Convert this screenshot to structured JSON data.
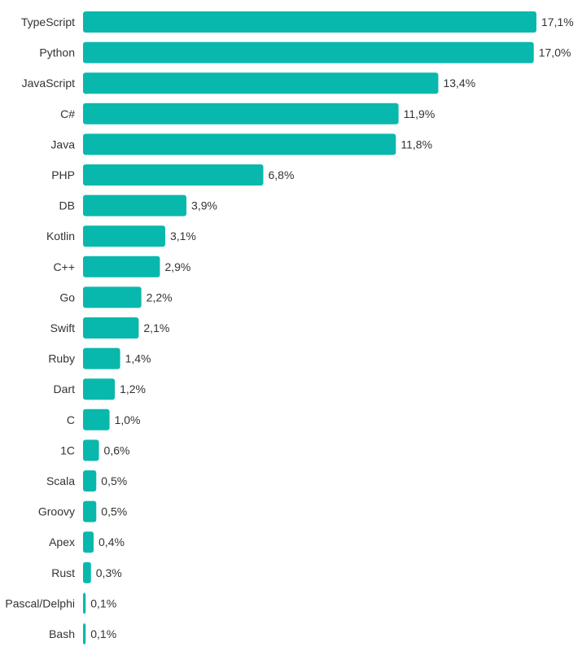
{
  "chart_data": {
    "type": "bar",
    "orientation": "horizontal",
    "title": "",
    "xlabel": "",
    "ylabel": "",
    "categories": [
      "TypeScript",
      "Python",
      "JavaScript",
      "C#",
      "Java",
      "PHP",
      "DB",
      "Kotlin",
      "C++",
      "Go",
      "Swift",
      "Ruby",
      "Dart",
      "C",
      "1C",
      "Scala",
      "Groovy",
      "Apex",
      "Rust",
      "Pascal/Delphi",
      "Bash"
    ],
    "values": [
      17.1,
      17.0,
      13.4,
      11.9,
      11.8,
      6.8,
      3.9,
      3.1,
      2.9,
      2.2,
      2.1,
      1.4,
      1.2,
      1.0,
      0.6,
      0.5,
      0.5,
      0.4,
      0.3,
      0.1,
      0.1
    ],
    "value_labels": [
      "17,1%",
      "17,0%",
      "13,4%",
      "11,9%",
      "11,8%",
      "6,8%",
      "3,9%",
      "3,1%",
      "2,9%",
      "2,2%",
      "2,1%",
      "1,4%",
      "1,2%",
      "1,0%",
      "0,6%",
      "0,5%",
      "0,5%",
      "0,4%",
      "0,3%",
      "0,1%",
      "0,1%"
    ],
    "xlim": [
      0,
      17.1
    ],
    "unit": "%",
    "grid": false,
    "legend": "none",
    "bar_color": "#09b8ac"
  }
}
